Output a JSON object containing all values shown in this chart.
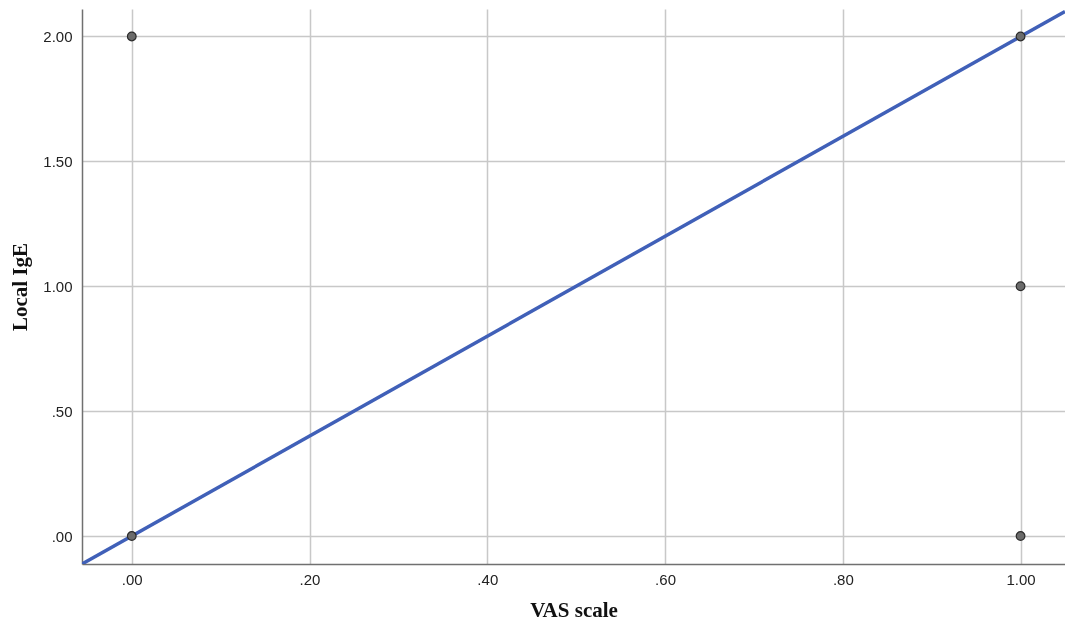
{
  "chart_data": {
    "type": "scatter",
    "xlabel": "VAS scale",
    "ylabel": "Local IgE",
    "series": [
      {
        "color": "#6b6b6b",
        "marker": "circle",
        "x": [
          0,
          0,
          1,
          1,
          1
        ],
        "values": [
          0,
          2,
          2,
          1,
          0
        ]
      },
      {
        "type": "line",
        "marker": "none",
        "color": "#4060b8",
        "x": [
          -0.056,
          1.05
        ],
        "values": [
          -0.112,
          2.1
        ]
      }
    ],
    "xlim": [
      -0.056,
      1.05
    ],
    "ylim": [
      -0.112,
      2.11
    ],
    "xticks": [
      {
        "value": 0,
        "label": ".00"
      },
      {
        "value": 0.2,
        "label": ".20"
      },
      {
        "value": 0.4,
        "label": ".40"
      },
      {
        "value": 0.6,
        "label": ".60"
      },
      {
        "value": 0.8,
        "label": ".80"
      },
      {
        "value": 1,
        "label": "1.00"
      }
    ],
    "yticks": [
      {
        "value": 0,
        "label": ".00"
      },
      {
        "value": 0.5,
        "label": ".50"
      },
      {
        "value": 1,
        "label": "1.00"
      },
      {
        "value": 1.5,
        "label": "1.50"
      },
      {
        "value": 2,
        "label": "2.00"
      }
    ],
    "grid": true,
    "line_style": "solid"
  }
}
